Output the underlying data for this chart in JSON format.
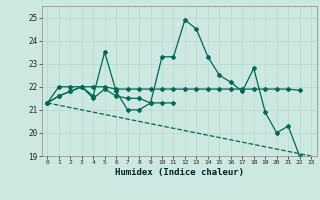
{
  "title": "",
  "xlabel": "Humidex (Indice chaleur)",
  "ylabel": "",
  "bg_color": "#cce8e0",
  "grid_color": "#b8d8d0",
  "line_color": "#006858",
  "x_values": [
    0,
    1,
    2,
    3,
    4,
    5,
    6,
    7,
    8,
    9,
    10,
    11,
    12,
    13,
    14,
    15,
    16,
    17,
    18,
    19,
    20,
    21,
    22,
    23
  ],
  "series1": [
    21.3,
    21.6,
    21.8,
    22.0,
    21.6,
    23.5,
    21.8,
    21.0,
    21.0,
    21.3,
    23.3,
    23.3,
    24.9,
    24.5,
    23.3,
    22.5,
    22.2,
    21.8,
    22.8,
    20.9,
    20.0,
    20.3,
    19.0,
    null
  ],
  "series2": [
    21.3,
    22.0,
    22.0,
    22.0,
    22.0,
    22.0,
    21.9,
    21.9,
    21.9,
    21.9,
    21.9,
    21.9,
    21.9,
    21.9,
    21.9,
    21.9,
    21.9,
    21.9,
    21.9,
    21.9,
    21.9,
    21.9,
    21.85,
    null
  ],
  "series3": [
    21.3,
    21.6,
    21.8,
    22.0,
    21.5,
    21.9,
    21.6,
    21.5,
    21.5,
    21.3,
    21.3,
    21.3,
    null,
    null,
    null,
    null,
    null,
    null,
    null,
    null,
    null,
    null,
    null,
    null
  ],
  "series4_x": [
    0,
    23
  ],
  "series4_y": [
    21.3,
    19.0
  ],
  "ylim": [
    19.0,
    25.5
  ],
  "xlim": [
    -0.5,
    23.5
  ]
}
